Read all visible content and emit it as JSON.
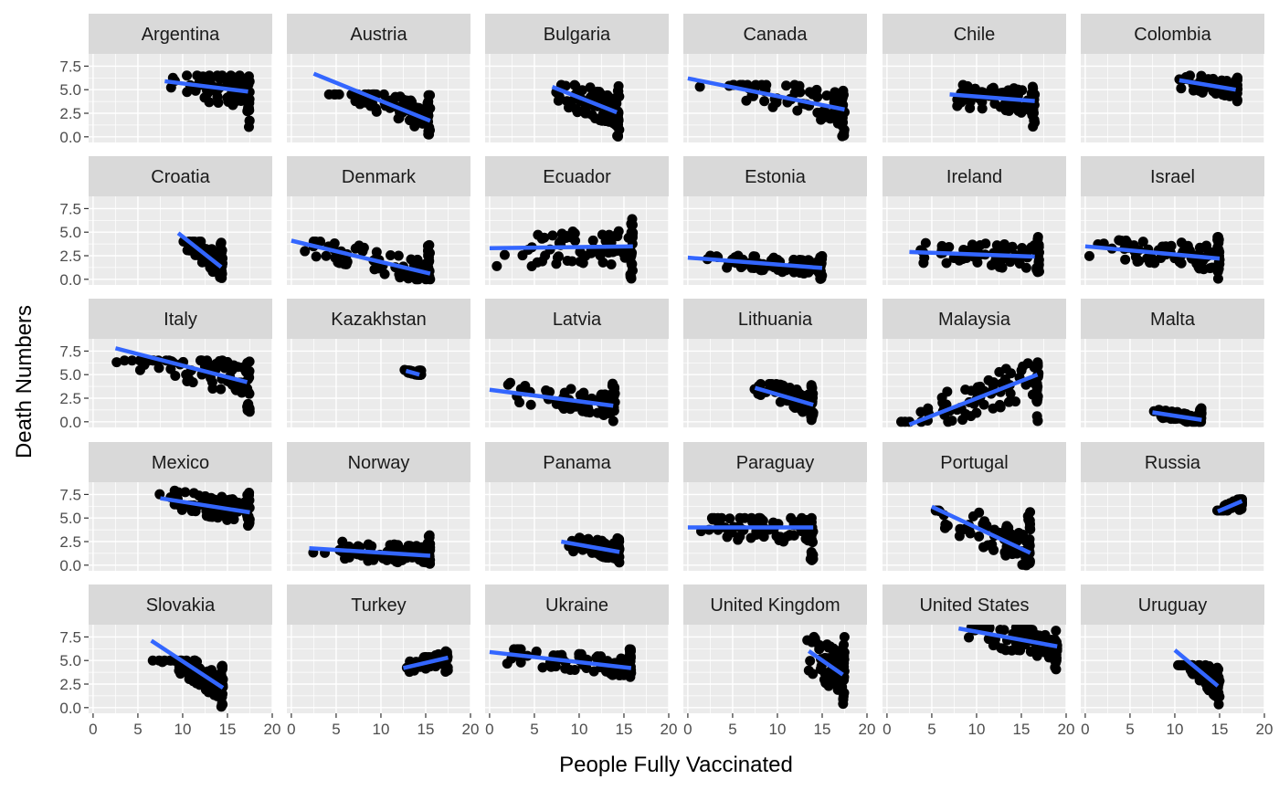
{
  "chart_data": {
    "type": "scatter",
    "xlabel": "People Fully Vaccinated",
    "ylabel": "Death Numbers",
    "xlim": [
      -0.5,
      20
    ],
    "ylim": [
      -0.6,
      8.8
    ],
    "x_ticks": [
      0,
      5,
      10,
      15,
      20
    ],
    "x_tick_labels": [
      "0",
      "5",
      "10",
      "15",
      "20"
    ],
    "y_ticks": [
      0,
      2.5,
      5,
      7.5
    ],
    "y_tick_labels": [
      "0.0",
      "2.5",
      "5.0",
      "7.5"
    ],
    "layout": "facet grid, 5 rows x 6 columns",
    "grid": true,
    "panel_background": "#ebebeb",
    "strip_background": "#d9d9d9",
    "point_color": "#000000",
    "fit_line_color": "#3366ff",
    "facets": [
      {
        "name": "Argentina",
        "x_range": [
          8,
          17.5
        ],
        "y_range": [
          1,
          6.5
        ],
        "fit": [
          [
            8,
            5.9
          ],
          [
            17.3,
            4.8
          ]
        ]
      },
      {
        "name": "Austria",
        "x_range": [
          2.5,
          15.5
        ],
        "y_range": [
          0,
          4.5
        ],
        "fit": [
          [
            2.5,
            6.7
          ],
          [
            15.5,
            1.7
          ]
        ]
      },
      {
        "name": "Bulgaria",
        "x_range": [
          7,
          14.5
        ],
        "y_range": [
          0,
          5.5
        ],
        "fit": [
          [
            7,
            5.3
          ],
          [
            14.2,
            2.6
          ]
        ]
      },
      {
        "name": "Canada",
        "x_range": [
          0,
          17.5
        ],
        "y_range": [
          0,
          5.5
        ],
        "fit": [
          [
            0,
            6.2
          ],
          [
            17.5,
            2.9
          ]
        ]
      },
      {
        "name": "Chile",
        "x_range": [
          7,
          16.5
        ],
        "y_range": [
          1,
          5.5
        ],
        "fit": [
          [
            7,
            4.5
          ],
          [
            16.5,
            3.8
          ]
        ]
      },
      {
        "name": "Colombia",
        "x_range": [
          10,
          17
        ],
        "y_range": [
          3.5,
          6.5
        ],
        "fit": [
          [
            10.5,
            6.0
          ],
          [
            16.8,
            5.0
          ]
        ]
      },
      {
        "name": "Croatia",
        "x_range": [
          9.5,
          14.5
        ],
        "y_range": [
          0,
          4
        ],
        "fit": [
          [
            9.5,
            4.9
          ],
          [
            14.3,
            1.3
          ]
        ]
      },
      {
        "name": "Denmark",
        "x_range": [
          0,
          15.5
        ],
        "y_range": [
          0,
          4
        ],
        "fit": [
          [
            0,
            4.1
          ],
          [
            15.5,
            0.6
          ]
        ]
      },
      {
        "name": "Ecuador",
        "x_range": [
          0,
          16
        ],
        "y_range": [
          0,
          6.6
        ],
        "fit": [
          [
            0,
            3.3
          ],
          [
            16,
            3.5
          ]
        ]
      },
      {
        "name": "Estonia",
        "x_range": [
          0,
          15
        ],
        "y_range": [
          0,
          2.5
        ],
        "fit": [
          [
            0,
            2.3
          ],
          [
            15,
            1.2
          ]
        ]
      },
      {
        "name": "Ireland",
        "x_range": [
          2.5,
          17
        ],
        "y_range": [
          0,
          4.5
        ],
        "fit": [
          [
            2.5,
            2.9
          ],
          [
            16.5,
            2.4
          ]
        ]
      },
      {
        "name": "Israel",
        "x_range": [
          0,
          15
        ],
        "y_range": [
          0,
          4.5
        ],
        "fit": [
          [
            0,
            3.5
          ],
          [
            15,
            2.2
          ]
        ]
      },
      {
        "name": "Italy",
        "x_range": [
          2,
          17.5
        ],
        "y_range": [
          1,
          6.5
        ],
        "fit": [
          [
            2.5,
            7.8
          ],
          [
            17.2,
            4.2
          ]
        ]
      },
      {
        "name": "Kazakhstan",
        "x_range": [
          12.5,
          14.5
        ],
        "y_range": [
          5,
          5.5
        ],
        "fit": [
          [
            12.8,
            5.4
          ],
          [
            14.3,
            5.0
          ]
        ]
      },
      {
        "name": "Latvia",
        "x_range": [
          0,
          14
        ],
        "y_range": [
          0,
          4.2
        ],
        "fit": [
          [
            0,
            3.4
          ],
          [
            13.8,
            1.7
          ]
        ]
      },
      {
        "name": "Lithuania",
        "x_range": [
          7,
          14
        ],
        "y_range": [
          0,
          4
        ],
        "fit": [
          [
            7.5,
            3.6
          ],
          [
            14,
            1.8
          ]
        ]
      },
      {
        "name": "Malaysia",
        "x_range": [
          0,
          17
        ],
        "y_range": [
          0,
          6.5
        ],
        "fit": [
          [
            2.5,
            -0.3
          ],
          [
            16.8,
            5.0
          ]
        ]
      },
      {
        "name": "Malta",
        "x_range": [
          7.5,
          13
        ],
        "y_range": [
          0,
          1.5
        ],
        "fit": [
          [
            7.5,
            1.0
          ],
          [
            13,
            0.2
          ]
        ]
      },
      {
        "name": "Mexico",
        "x_range": [
          7,
          17.5
        ],
        "y_range": [
          4,
          8
        ],
        "fit": [
          [
            7.5,
            7.1
          ],
          [
            17.5,
            5.6
          ]
        ]
      },
      {
        "name": "Norway",
        "x_range": [
          2,
          15.5
        ],
        "y_range": [
          0,
          3.2
        ],
        "fit": [
          [
            2,
            1.8
          ],
          [
            15.5,
            1.0
          ]
        ]
      },
      {
        "name": "Panama",
        "x_range": [
          8,
          14.5
        ],
        "y_range": [
          0,
          3
        ],
        "fit": [
          [
            8,
            2.5
          ],
          [
            14.5,
            1.4
          ]
        ]
      },
      {
        "name": "Paraguay",
        "x_range": [
          0,
          14
        ],
        "y_range": [
          0,
          5
        ],
        "fit": [
          [
            0,
            4.0
          ],
          [
            14,
            4.0
          ]
        ]
      },
      {
        "name": "Portugal",
        "x_range": [
          5,
          16
        ],
        "y_range": [
          0,
          5.8
        ],
        "fit": [
          [
            5,
            6.2
          ],
          [
            16,
            1.3
          ]
        ]
      },
      {
        "name": "Russia",
        "x_range": [
          14.5,
          17.5
        ],
        "y_range": [
          5.8,
          7
        ],
        "fit": [
          [
            14.8,
            5.7
          ],
          [
            17.5,
            6.8
          ]
        ]
      },
      {
        "name": "Slovakia",
        "x_range": [
          6.5,
          14.5
        ],
        "y_range": [
          0,
          5
        ],
        "fit": [
          [
            6.5,
            7.1
          ],
          [
            14.5,
            2.1
          ]
        ]
      },
      {
        "name": "Turkey",
        "x_range": [
          12.5,
          17.5
        ],
        "y_range": [
          3.8,
          6
        ],
        "fit": [
          [
            12.5,
            4.2
          ],
          [
            17.5,
            5.3
          ]
        ]
      },
      {
        "name": "Ukraine",
        "x_range": [
          0,
          15.8
        ],
        "y_range": [
          2.8,
          6.2
        ],
        "fit": [
          [
            0,
            5.9
          ],
          [
            15.8,
            4.2
          ]
        ]
      },
      {
        "name": "United Kingdom",
        "x_range": [
          13,
          17.5
        ],
        "y_range": [
          0,
          7.5
        ],
        "fit": [
          [
            13.5,
            6.0
          ],
          [
            17.3,
            3.5
          ]
        ]
      },
      {
        "name": "United States",
        "x_range": [
          8,
          19
        ],
        "y_range": [
          3.8,
          8.5
        ],
        "fit": [
          [
            8,
            8.4
          ],
          [
            19,
            6.5
          ]
        ]
      },
      {
        "name": "Uruguay",
        "x_range": [
          10,
          15
        ],
        "y_range": [
          0,
          4.5
        ],
        "fit": [
          [
            10,
            6.1
          ],
          [
            14.8,
            2.3
          ]
        ]
      }
    ]
  }
}
